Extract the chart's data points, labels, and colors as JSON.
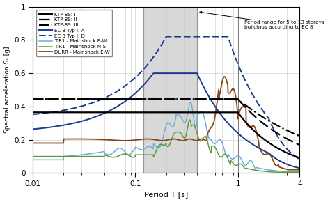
{
  "xlabel": "Period T [s]",
  "ylabel": "Spectral acceleration Sₐ [g]",
  "xlim": [
    0.01,
    4
  ],
  "ylim": [
    0,
    1.0
  ],
  "yticks": [
    0,
    0.2,
    0.4,
    0.6,
    0.8,
    1.0
  ],
  "xticks": [
    0.01,
    0.1,
    1,
    4
  ],
  "xticklabels": [
    "0.01",
    "0.1",
    "1",
    "4"
  ],
  "gray_band": [
    0.12,
    0.4
  ],
  "annotation": "Period range for 5 to 13 storeys\nbuildings according to EC 8",
  "colors": {
    "ktp1": "#000000",
    "ktp2": "#000000",
    "ktp3": "#000000",
    "ec8_A": "#1a3a8a",
    "ec8_D": "#1a3a8a",
    "tir1_ew": "#6ab0d8",
    "tir1_ns": "#5a9a3a",
    "durr_ew": "#8B4513"
  },
  "ktp1_plateau": 0.365,
  "ktp2_plateau": 0.445,
  "ktp3_plateau": 0.445,
  "ktp1_TC": 1.0,
  "ktp2_TC": 1.0,
  "ktp3_TC": 1.0,
  "ktp1_alpha": 1.0,
  "ktp2_alpha": 0.7,
  "ktp3_alpha": 0.5,
  "ec8A_ag": 0.24,
  "ec8A_S": 1.0,
  "ec8A_TB": 0.15,
  "ec8A_TC": 0.4,
  "ec8A_TD": 2.0,
  "ec8D_ag": 0.24,
  "ec8D_S": 1.35,
  "ec8D_TB": 0.2,
  "ec8D_TC": 0.8,
  "ec8D_TD": 2.0,
  "legend_labels": [
    "KTP-89: I",
    "KTP-89: II",
    "KTP-89: III",
    "EC 8 Typ I: A",
    "EC 8 Typ I: D",
    "TIR1 - Mainshock E-W",
    "TIR1 - Mainshock N-S",
    "DURR - Mainshock E-W"
  ]
}
